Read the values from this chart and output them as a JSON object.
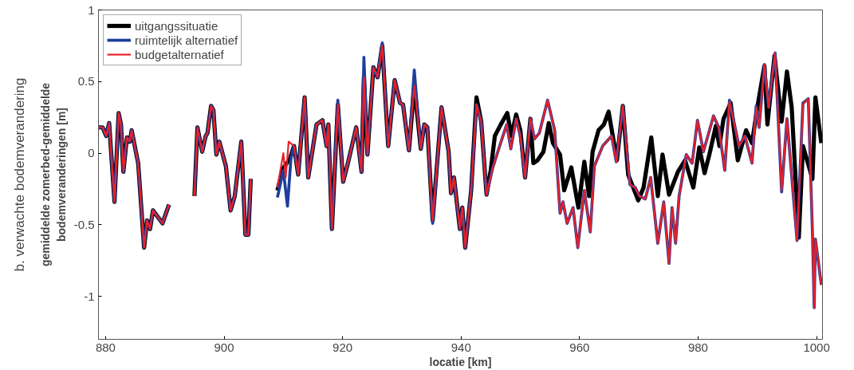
{
  "chart_data": {
    "type": "line",
    "xlabel": "locatie [km]",
    "ylabel": "gemiddelde zomerbed-gemiddelde\nbodemveranderingen [m]",
    "annotations": [
      "b. verwachte bodemverandering"
    ],
    "xlim": [
      878.8,
      1001
    ],
    "ylim": [
      -1.3,
      1
    ],
    "xticks": [
      880,
      900,
      920,
      940,
      960,
      980,
      1000
    ],
    "yticks": [
      {
        "value": -1,
        "label": "-1"
      },
      {
        "value": -0.5,
        "label": "-0.5"
      },
      0,
      {
        "value": 0.5,
        "label": "0.5"
      },
      1
    ],
    "grid": false,
    "legend": "top left",
    "line_style": "solid",
    "marker": "none",
    "series": [
      {
        "name": "uitgangssituatie",
        "color": "#000000",
        "x": [
          878.8,
          879.5,
          880.1,
          880.6,
          881.5,
          882.2,
          882.6,
          883.0,
          883.6,
          884.1,
          884.4,
          885.5,
          886.5,
          887.0,
          887.5,
          888.0,
          888.9,
          889.6,
          890.7,
          892.8,
          895.0,
          895.5,
          896.3,
          896.9,
          897.2,
          897.8,
          898.2,
          898.7,
          899.2,
          900.3,
          901.1,
          901.8,
          902.9,
          903.6,
          904.1,
          904.5,
          906.7,
          909.0,
          909.9,
          911.1,
          911.8,
          912.5,
          913.6,
          914.2,
          915.6,
          916.6,
          917.3,
          917.6,
          918.2,
          919.2,
          920.1,
          920.9,
          922.3,
          923.2,
          923.6,
          924.2,
          925.2,
          925.9,
          926.7,
          927.7,
          928.8,
          929.7,
          930.2,
          931.2,
          932.1,
          933.2,
          933.8,
          934.3,
          935.2,
          936.7,
          937.9,
          938.3,
          938.8,
          939.8,
          940.2,
          940.7,
          941.7,
          942.6,
          943.4,
          944.3,
          945.0,
          945.7,
          946.7,
          947.8,
          948.5,
          949.3,
          950.0,
          950.8,
          951.7,
          952.2,
          952.9,
          953.9,
          954.8,
          955.5,
          956.7,
          957.4,
          958.6,
          959.8,
          960.8,
          961.6,
          962.2,
          963.2,
          964.1,
          964.9,
          965.6,
          966.3,
          967.3,
          968.2,
          969.9,
          970.8,
          972.1,
          973.2,
          974.0,
          975.1,
          976.6,
          977.8,
          979.2,
          980.2,
          981.1,
          981.9,
          983.0,
          983.6,
          984.3,
          985.5,
          986.7,
          988.1,
          989.1,
          990.0,
          991.2,
          991.7,
          992.9,
          994.1,
          995.0,
          995.8,
          997.0,
          997.7,
          998.4,
          999.3,
          999.8,
          1000.8
        ],
        "values": [
          0.18,
          0.18,
          0.12,
          0.21,
          -0.34,
          0.28,
          0.2,
          -0.13,
          0.11,
          0.08,
          0.16,
          -0.07,
          -0.66,
          -0.47,
          -0.53,
          -0.4,
          -0.45,
          -0.49,
          -0.36,
          null,
          -0.3,
          0.18,
          0.01,
          0.12,
          0.14,
          0.33,
          0.3,
          -0.01,
          0.08,
          -0.09,
          -0.4,
          -0.3,
          0.08,
          -0.57,
          -0.57,
          -0.18,
          null,
          -0.26,
          -0.11,
          -0.04,
          0.05,
          -0.15,
          0.39,
          -0.17,
          0.2,
          0.23,
          0.05,
          0.2,
          -0.53,
          0.34,
          -0.2,
          -0.07,
          0.18,
          -0.13,
          0.53,
          -0.01,
          0.6,
          0.53,
          0.75,
          0.05,
          0.51,
          0.35,
          0.34,
          0.02,
          0.47,
          0.03,
          0.2,
          0.18,
          -0.47,
          0.32,
          0.01,
          -0.28,
          -0.17,
          -0.53,
          -0.38,
          -0.66,
          -0.26,
          0.39,
          0.22,
          -0.29,
          -0.12,
          0.12,
          0.2,
          0.28,
          0.12,
          0.27,
          0.16,
          -0.17,
          0.24,
          -0.07,
          -0.05,
          0.01,
          0.21,
          0.07,
          -0.01,
          -0.26,
          -0.1,
          -0.38,
          -0.06,
          -0.3,
          0.01,
          0.16,
          0.2,
          0.29,
          0.12,
          -0.05,
          0.33,
          -0.15,
          -0.33,
          -0.24,
          0.11,
          -0.3,
          -0.01,
          -0.29,
          -0.13,
          -0.05,
          -0.24,
          0.04,
          -0.14,
          -0.01,
          0.19,
          0.05,
          0.24,
          0.35,
          -0.05,
          0.16,
          0.07,
          0.32,
          0.61,
          0.2,
          0.68,
          0.22,
          0.57,
          0.32,
          -0.59,
          0.05,
          -0.05,
          -0.18,
          0.39,
          0.07
        ]
      },
      {
        "name": "ruimtelijk alternatief",
        "color": "#1f3d9c",
        "x": [
          878.8,
          879.5,
          880.1,
          880.6,
          881.5,
          882.2,
          882.6,
          883.0,
          883.6,
          884.1,
          884.4,
          885.5,
          886.5,
          887.0,
          887.5,
          888.0,
          888.9,
          889.6,
          890.7,
          892.8,
          895.0,
          895.5,
          896.3,
          896.9,
          897.2,
          897.8,
          898.2,
          898.7,
          899.2,
          900.3,
          901.1,
          901.8,
          902.9,
          903.6,
          904.1,
          904.5,
          906.7,
          909.0,
          910.0,
          910.7,
          911.3,
          911.8,
          912.5,
          913.6,
          914.2,
          915.6,
          916.6,
          917.3,
          917.6,
          918.2,
          919.2,
          920.1,
          920.9,
          922.3,
          923.2,
          923.6,
          924.2,
          925.2,
          925.9,
          926.7,
          927.7,
          928.8,
          929.7,
          930.2,
          931.2,
          932.1,
          933.2,
          933.8,
          934.3,
          935.2,
          936.7,
          937.9,
          938.3,
          938.8,
          939.8,
          940.2,
          940.7,
          941.7,
          942.6,
          943.4,
          944.3,
          945.3,
          946.2,
          947.7,
          948.4,
          949.3,
          950.0,
          950.8,
          951.7,
          952.4,
          953.2,
          954.6,
          955.8,
          956.7,
          957.2,
          957.9,
          958.9,
          959.7,
          960.8,
          961.8,
          962.5,
          963.9,
          965.4,
          966.2,
          967.3,
          968.5,
          969.4,
          970.1,
          971.1,
          972.0,
          973.2,
          974.2,
          975.1,
          975.6,
          976.2,
          976.8,
          978.0,
          979.0,
          979.9,
          980.9,
          982.6,
          983.5,
          984.5,
          985.3,
          986.9,
          987.9,
          989.1,
          989.8,
          990.3,
          991.2,
          991.9,
          993.0,
          994.1,
          995.0,
          996.7,
          997.7,
          998.6,
          999.3,
          999.6,
          999.8,
          1000.8
        ],
        "values": [
          0.18,
          0.18,
          0.12,
          0.21,
          -0.34,
          0.28,
          0.2,
          -0.13,
          0.11,
          0.08,
          0.16,
          -0.07,
          -0.66,
          -0.47,
          -0.53,
          -0.4,
          -0.45,
          -0.49,
          -0.36,
          null,
          -0.3,
          0.18,
          0.01,
          0.12,
          0.14,
          0.33,
          0.3,
          -0.01,
          0.08,
          -0.09,
          -0.4,
          -0.3,
          0.08,
          -0.57,
          -0.57,
          -0.18,
          null,
          -0.31,
          -0.12,
          -0.37,
          -0.03,
          0.05,
          -0.15,
          0.39,
          -0.17,
          0.2,
          0.23,
          0.05,
          0.2,
          -0.53,
          0.37,
          -0.2,
          -0.07,
          0.18,
          -0.13,
          0.67,
          -0.01,
          0.6,
          0.53,
          0.77,
          0.05,
          0.51,
          0.35,
          0.34,
          0.02,
          0.58,
          0.03,
          0.2,
          0.18,
          -0.49,
          0.32,
          0.01,
          -0.28,
          -0.17,
          -0.53,
          -0.38,
          -0.66,
          -0.26,
          0.34,
          0.22,
          -0.29,
          -0.11,
          0.01,
          0.2,
          0.03,
          0.24,
          0.12,
          -0.17,
          0.24,
          0.1,
          0.14,
          0.37,
          0.16,
          -0.42,
          -0.34,
          -0.49,
          -0.38,
          -0.66,
          -0.26,
          -0.55,
          -0.09,
          0.05,
          0.12,
          -0.06,
          0.33,
          -0.22,
          -0.24,
          -0.3,
          -0.32,
          -0.17,
          -0.63,
          -0.34,
          -0.77,
          -0.38,
          -0.63,
          -0.3,
          -0.01,
          -0.07,
          0.23,
          0.01,
          0.26,
          0.18,
          -0.12,
          0.37,
          0.05,
          0.12,
          -0.07,
          0.33,
          0.18,
          0.62,
          0.32,
          0.7,
          -0.27,
          0.24,
          -0.61,
          0.35,
          0.38,
          -0.55,
          -1.08,
          -0.6,
          -0.92
        ]
      },
      {
        "name": "budgetalternatief",
        "color": "#e8202a",
        "x": [
          878.8,
          879.5,
          880.1,
          880.6,
          881.5,
          882.2,
          882.6,
          883.0,
          883.6,
          884.1,
          884.4,
          885.5,
          886.5,
          887.0,
          887.5,
          888.0,
          888.9,
          889.6,
          890.7,
          892.8,
          895.0,
          895.5,
          896.3,
          896.9,
          897.2,
          897.8,
          898.2,
          898.7,
          899.2,
          900.3,
          901.1,
          901.8,
          902.9,
          903.6,
          904.1,
          904.5,
          906.7,
          909.0,
          910.0,
          910.4,
          910.9,
          911.8,
          912.5,
          913.6,
          914.2,
          915.6,
          916.6,
          917.3,
          917.6,
          918.2,
          919.2,
          920.1,
          920.9,
          922.3,
          923.2,
          923.6,
          924.2,
          925.2,
          925.9,
          926.7,
          927.7,
          928.8,
          929.7,
          930.2,
          931.2,
          932.1,
          933.2,
          933.8,
          934.3,
          935.2,
          936.7,
          937.9,
          938.3,
          938.8,
          939.8,
          940.2,
          940.7,
          941.7,
          942.6,
          943.4,
          944.3,
          945.3,
          946.2,
          947.7,
          948.4,
          949.3,
          950.0,
          950.8,
          951.7,
          952.4,
          953.2,
          954.6,
          955.8,
          956.7,
          957.2,
          957.9,
          958.9,
          959.7,
          960.8,
          961.8,
          962.5,
          963.9,
          965.4,
          966.2,
          967.3,
          968.5,
          969.4,
          970.1,
          971.1,
          972.0,
          973.2,
          974.2,
          975.1,
          975.6,
          976.2,
          976.8,
          978.0,
          979.0,
          979.9,
          980.9,
          982.6,
          983.5,
          984.5,
          985.3,
          986.9,
          987.9,
          989.1,
          989.8,
          990.3,
          991.2,
          991.9,
          993.0,
          994.1,
          995.0,
          996.7,
          997.7,
          998.6,
          999.3,
          999.6,
          999.8,
          1000.8
        ],
        "values": [
          0.18,
          0.18,
          0.12,
          0.21,
          -0.34,
          0.28,
          0.2,
          -0.13,
          0.11,
          0.08,
          0.16,
          -0.07,
          -0.66,
          -0.47,
          -0.53,
          -0.4,
          -0.45,
          -0.49,
          -0.36,
          null,
          -0.3,
          0.18,
          0.01,
          0.12,
          0.14,
          0.33,
          0.3,
          -0.01,
          0.08,
          -0.09,
          -0.4,
          -0.3,
          0.08,
          -0.57,
          -0.57,
          -0.18,
          null,
          -0.24,
          0.0,
          -0.17,
          0.08,
          0.05,
          -0.15,
          0.39,
          -0.17,
          0.2,
          0.23,
          0.05,
          0.2,
          -0.53,
          0.34,
          -0.2,
          -0.07,
          0.18,
          -0.13,
          0.53,
          -0.01,
          0.6,
          0.53,
          0.75,
          0.05,
          0.51,
          0.35,
          0.34,
          0.02,
          0.47,
          0.03,
          0.2,
          0.18,
          -0.47,
          0.32,
          0.01,
          -0.28,
          -0.17,
          -0.53,
          -0.38,
          -0.66,
          -0.26,
          0.34,
          0.22,
          -0.29,
          -0.11,
          0.01,
          0.2,
          0.03,
          0.24,
          0.12,
          -0.17,
          0.24,
          0.1,
          0.14,
          0.37,
          0.16,
          -0.42,
          -0.34,
          -0.49,
          -0.38,
          -0.66,
          -0.26,
          -0.55,
          -0.09,
          0.05,
          0.12,
          -0.06,
          0.33,
          -0.22,
          -0.24,
          -0.3,
          -0.32,
          -0.17,
          -0.63,
          -0.34,
          -0.77,
          -0.38,
          -0.63,
          -0.3,
          -0.01,
          -0.07,
          0.23,
          0.01,
          0.26,
          0.18,
          -0.12,
          0.36,
          0.05,
          0.12,
          -0.07,
          0.32,
          0.18,
          0.62,
          0.32,
          0.7,
          -0.26,
          0.24,
          -0.61,
          0.34,
          0.38,
          -0.55,
          -1.08,
          -0.6,
          -0.92
        ]
      }
    ]
  }
}
